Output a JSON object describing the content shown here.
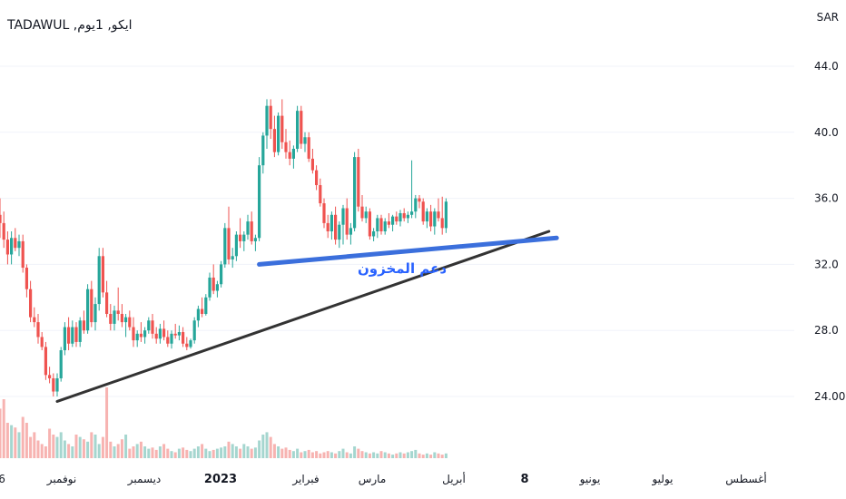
{
  "header": {
    "symbol_title": "TADAWUL ,ايكو, 1يوم",
    "currency": "SAR"
  },
  "chart_data": {
    "type": "candlestick",
    "y_axis": {
      "ticks": [
        "44.0",
        "40.0",
        "36.0",
        "32.0",
        "28.0",
        "24.00"
      ],
      "tick_values": [
        44,
        40,
        36,
        32,
        28,
        24
      ],
      "ylim": [
        21.5,
        45
      ],
      "grid": true
    },
    "x_axis": {
      "ticks": [
        {
          "label": "6",
          "bold": false
        },
        {
          "label": "نوفمبر",
          "bold": false
        },
        {
          "label": "ديسمبر",
          "bold": false
        },
        {
          "label": "2023",
          "bold": true
        },
        {
          "label": "فبراير",
          "bold": false
        },
        {
          "label": "مارس",
          "bold": false
        },
        {
          "label": "أبريل",
          "bold": false
        },
        {
          "label": "8",
          "bold": true
        },
        {
          "label": "يونيو",
          "bold": false
        },
        {
          "label": "يوليو",
          "bold": false
        },
        {
          "label": "أغسطس",
          "bold": false
        }
      ]
    },
    "colors": {
      "up": "#26a69a",
      "down": "#ef5350",
      "vol_up": "#a5d6cf",
      "vol_down": "#f7b3b1",
      "support_line": "#3b6fdc",
      "trend_line": "#333333",
      "annotation": "#2962ff",
      "grid": "#f0f3fa"
    },
    "candles": [
      [
        35.0,
        36.0,
        33.6,
        34.5
      ],
      [
        34.5,
        35.2,
        33.0,
        33.5
      ],
      [
        33.5,
        34.0,
        32.0,
        32.6
      ],
      [
        32.6,
        34.0,
        32.0,
        33.6
      ],
      [
        33.6,
        34.2,
        32.8,
        33.0
      ],
      [
        33.0,
        33.8,
        32.5,
        33.4
      ],
      [
        33.4,
        33.8,
        31.5,
        31.8
      ],
      [
        31.8,
        32.0,
        30.0,
        30.5
      ],
      [
        30.5,
        31.0,
        28.5,
        28.8
      ],
      [
        28.8,
        29.4,
        28.2,
        28.5
      ],
      [
        28.5,
        29.0,
        27.2,
        27.6
      ],
      [
        27.6,
        27.9,
        26.8,
        27.0
      ],
      [
        27.0,
        27.3,
        25.0,
        25.3
      ],
      [
        25.3,
        25.8,
        24.8,
        25.1
      ],
      [
        25.1,
        25.4,
        24.0,
        24.3
      ],
      [
        24.3,
        25.4,
        24.0,
        25.1
      ],
      [
        25.1,
        27.0,
        24.9,
        26.8
      ],
      [
        26.8,
        28.5,
        26.5,
        28.2
      ],
      [
        28.2,
        28.8,
        26.8,
        27.2
      ],
      [
        27.2,
        28.6,
        27.0,
        28.2
      ],
      [
        28.2,
        28.5,
        27.0,
        27.3
      ],
      [
        27.3,
        28.8,
        27.0,
        28.6
      ],
      [
        28.6,
        29.2,
        27.8,
        28.0
      ],
      [
        28.0,
        30.8,
        27.8,
        30.5
      ],
      [
        30.5,
        31.0,
        28.2,
        28.5
      ],
      [
        28.5,
        30.0,
        28.0,
        29.6
      ],
      [
        29.6,
        33.0,
        29.2,
        32.5
      ],
      [
        32.5,
        33.0,
        30.0,
        30.3
      ],
      [
        30.3,
        31.0,
        28.8,
        29.0
      ],
      [
        29.0,
        29.6,
        28.0,
        28.4
      ],
      [
        28.4,
        29.5,
        28.0,
        29.2
      ],
      [
        29.2,
        30.6,
        28.6,
        29.0
      ],
      [
        29.0,
        29.6,
        28.2,
        28.5
      ],
      [
        28.5,
        29.0,
        27.6,
        28.8
      ],
      [
        28.8,
        29.2,
        28.0,
        28.2
      ],
      [
        28.2,
        28.8,
        27.0,
        27.4
      ],
      [
        27.4,
        28.0,
        27.0,
        27.8
      ],
      [
        27.8,
        28.5,
        27.3,
        27.6
      ],
      [
        27.6,
        28.2,
        27.2,
        28.0
      ],
      [
        28.0,
        28.8,
        27.8,
        28.6
      ],
      [
        28.6,
        29.0,
        27.5,
        27.8
      ],
      [
        27.8,
        28.2,
        27.2,
        27.5
      ],
      [
        27.5,
        28.4,
        27.2,
        28.1
      ],
      [
        28.1,
        28.6,
        27.4,
        27.6
      ],
      [
        27.6,
        28.0,
        27.0,
        27.2
      ],
      [
        27.2,
        28.0,
        26.9,
        27.8
      ],
      [
        27.8,
        28.4,
        27.5,
        27.7
      ],
      [
        27.7,
        28.3,
        27.4,
        27.9
      ],
      [
        27.9,
        28.2,
        27.0,
        27.2
      ],
      [
        27.2,
        27.6,
        26.8,
        27.0
      ],
      [
        27.0,
        27.5,
        26.9,
        27.4
      ],
      [
        27.4,
        28.8,
        27.2,
        28.6
      ],
      [
        28.6,
        29.5,
        28.2,
        29.3
      ],
      [
        29.3,
        30.0,
        28.8,
        29.0
      ],
      [
        29.0,
        30.2,
        28.9,
        30.0
      ],
      [
        30.0,
        31.5,
        29.8,
        31.2
      ],
      [
        31.2,
        32.0,
        30.2,
        30.4
      ],
      [
        30.4,
        31.0,
        30.0,
        30.8
      ],
      [
        30.8,
        32.2,
        30.6,
        32.0
      ],
      [
        32.0,
        34.5,
        31.8,
        34.2
      ],
      [
        34.2,
        35.5,
        32.0,
        32.3
      ],
      [
        32.3,
        33.0,
        31.8,
        32.5
      ],
      [
        32.5,
        34.0,
        32.2,
        33.8
      ],
      [
        33.8,
        34.8,
        33.0,
        33.4
      ],
      [
        33.4,
        34.0,
        32.8,
        33.8
      ],
      [
        33.8,
        35.0,
        33.5,
        34.6
      ],
      [
        34.6,
        35.2,
        33.2,
        33.4
      ],
      [
        33.4,
        33.8,
        32.8,
        33.6
      ],
      [
        33.6,
        38.5,
        33.4,
        38.0
      ],
      [
        38.0,
        40.0,
        37.5,
        39.8
      ],
      [
        39.8,
        42.0,
        39.0,
        41.6
      ],
      [
        41.6,
        42.0,
        39.6,
        40.2
      ],
      [
        40.2,
        41.0,
        38.5,
        38.8
      ],
      [
        38.8,
        41.2,
        38.6,
        41.0
      ],
      [
        41.0,
        42.0,
        39.0,
        39.4
      ],
      [
        39.4,
        40.2,
        38.4,
        38.8
      ],
      [
        38.8,
        39.5,
        38.0,
        38.4
      ],
      [
        38.4,
        39.2,
        37.8,
        39.0
      ],
      [
        39.0,
        41.6,
        38.8,
        41.3
      ],
      [
        41.3,
        41.6,
        39.0,
        39.3
      ],
      [
        39.3,
        40.0,
        38.8,
        39.7
      ],
      [
        39.7,
        40.0,
        38.2,
        38.4
      ],
      [
        38.4,
        39.0,
        37.5,
        37.7
      ],
      [
        37.7,
        38.0,
        36.5,
        36.8
      ],
      [
        36.8,
        37.2,
        35.5,
        35.7
      ],
      [
        35.7,
        36.0,
        34.2,
        34.5
      ],
      [
        34.5,
        35.0,
        33.6,
        34.0
      ],
      [
        34.0,
        35.2,
        33.5,
        35.0
      ],
      [
        35.0,
        35.5,
        33.2,
        33.5
      ],
      [
        33.5,
        34.6,
        33.0,
        34.4
      ],
      [
        34.4,
        35.6,
        33.2,
        35.4
      ],
      [
        35.4,
        36.0,
        33.5,
        33.8
      ],
      [
        33.8,
        34.5,
        33.2,
        34.2
      ],
      [
        34.2,
        38.8,
        34.0,
        38.5
      ],
      [
        38.5,
        39.0,
        35.2,
        35.5
      ],
      [
        35.5,
        36.2,
        34.6,
        34.8
      ],
      [
        34.8,
        35.5,
        34.5,
        35.2
      ],
      [
        35.2,
        35.4,
        33.5,
        33.7
      ],
      [
        33.7,
        34.2,
        33.4,
        34.0
      ],
      [
        34.0,
        35.0,
        33.6,
        34.8
      ],
      [
        34.8,
        35.0,
        33.8,
        34.0
      ],
      [
        34.0,
        34.8,
        33.8,
        34.6
      ],
      [
        34.6,
        35.1,
        34.2,
        34.4
      ],
      [
        34.4,
        35.0,
        34.0,
        34.9
      ],
      [
        34.9,
        35.2,
        34.4,
        34.6
      ],
      [
        34.6,
        35.3,
        34.3,
        35.1
      ],
      [
        35.1,
        35.4,
        34.6,
        34.8
      ],
      [
        34.8,
        35.2,
        34.5,
        35.0
      ],
      [
        35.0,
        38.3,
        34.8,
        35.2
      ],
      [
        35.2,
        36.2,
        34.8,
        36.0
      ],
      [
        36.0,
        36.2,
        35.4,
        35.8
      ],
      [
        35.8,
        36.0,
        34.4,
        34.6
      ],
      [
        34.6,
        35.4,
        34.2,
        35.2
      ],
      [
        35.2,
        35.6,
        34.0,
        34.3
      ],
      [
        34.3,
        35.4,
        33.8,
        35.2
      ],
      [
        35.2,
        36.0,
        34.6,
        34.8
      ],
      [
        34.8,
        36.1,
        33.8,
        34.2
      ],
      [
        34.2,
        36.0,
        33.9,
        35.8
      ]
    ],
    "volumes": [
      0.42,
      0.5,
      0.3,
      0.28,
      0.26,
      0.22,
      0.35,
      0.3,
      0.18,
      0.22,
      0.15,
      0.12,
      0.1,
      0.25,
      0.2,
      0.18,
      0.22,
      0.15,
      0.12,
      0.1,
      0.2,
      0.18,
      0.16,
      0.14,
      0.22,
      0.2,
      0.12,
      0.18,
      0.6,
      0.14,
      0.1,
      0.12,
      0.16,
      0.2,
      0.08,
      0.1,
      0.12,
      0.14,
      0.1,
      0.08,
      0.09,
      0.07,
      0.1,
      0.12,
      0.08,
      0.06,
      0.05,
      0.08,
      0.09,
      0.07,
      0.06,
      0.08,
      0.1,
      0.12,
      0.08,
      0.06,
      0.07,
      0.08,
      0.09,
      0.1,
      0.14,
      0.12,
      0.1,
      0.08,
      0.12,
      0.1,
      0.08,
      0.09,
      0.15,
      0.2,
      0.22,
      0.18,
      0.12,
      0.1,
      0.08,
      0.09,
      0.07,
      0.06,
      0.08,
      0.05,
      0.06,
      0.07,
      0.05,
      0.06,
      0.04,
      0.05,
      0.06,
      0.05,
      0.04,
      0.06,
      0.08,
      0.05,
      0.04,
      0.1,
      0.08,
      0.06,
      0.05,
      0.04,
      0.05,
      0.04,
      0.06,
      0.05,
      0.04,
      0.03,
      0.04,
      0.05,
      0.04,
      0.05,
      0.06,
      0.07,
      0.04,
      0.03,
      0.04,
      0.03,
      0.05,
      0.04,
      0.03,
      0.04
    ],
    "support_line": {
      "x1_index": 68,
      "y1": 32.0,
      "x2_index": 146,
      "y2": 33.6
    },
    "trend_line": {
      "x1_index": 15,
      "y1": 23.7,
      "x2_index": 144,
      "y2": 34.0
    },
    "annotation": "دعم المخزون"
  }
}
